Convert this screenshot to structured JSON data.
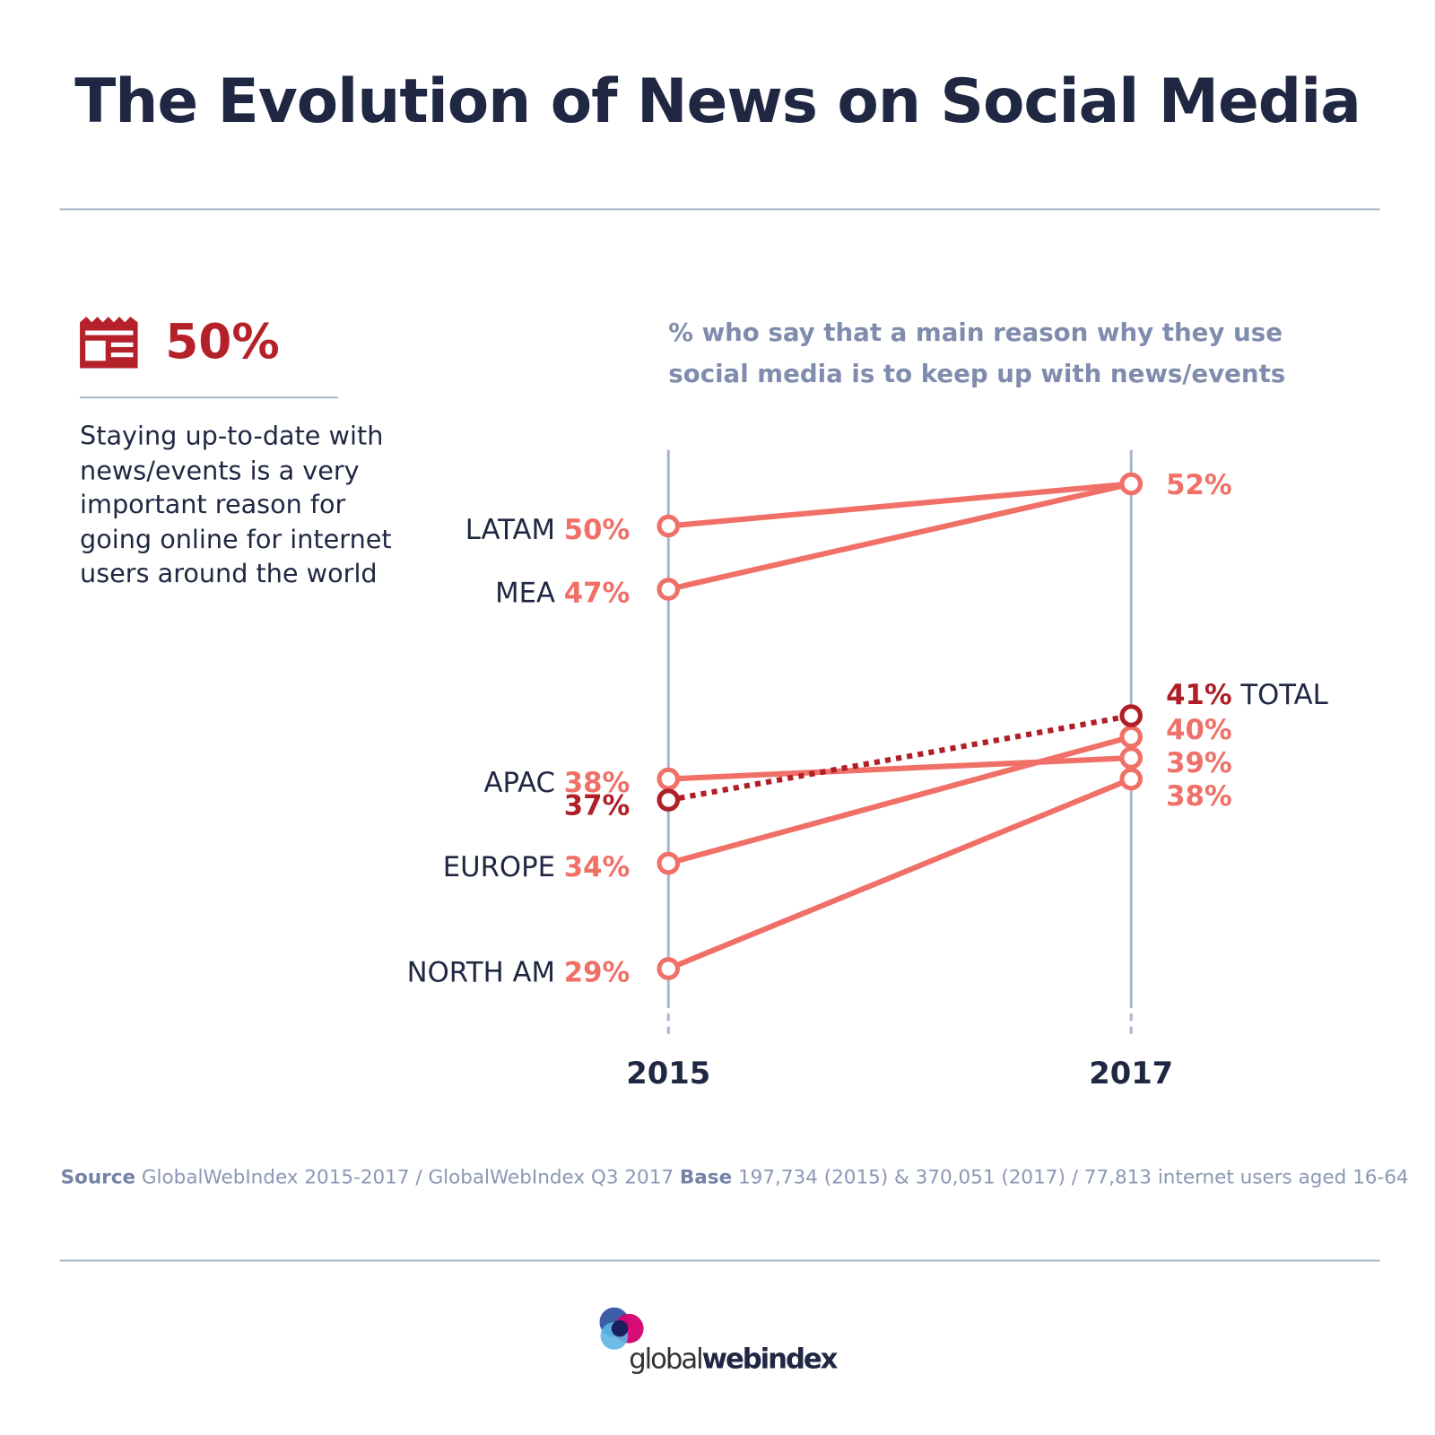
{
  "title": "The Evolution of News on Social Media",
  "side": {
    "icon": "newspaper-icon",
    "stat": "50%",
    "description": "Staying up-to-date with news/events is a very important reason for going online for internet users around the world"
  },
  "chart_data": {
    "type": "slope",
    "title": "% who say that a main reason why they use social media is to keep up with news/events",
    "categories": [
      "2015",
      "2017"
    ],
    "series": [
      {
        "name": "LATAM",
        "values": [
          50,
          52
        ],
        "label_2015": "50%",
        "label_2017": "52%",
        "style": "solid"
      },
      {
        "name": "MEA",
        "values": [
          47,
          52
        ],
        "label_2015": "47%",
        "label_2017": "",
        "style": "solid"
      },
      {
        "name": "APAC",
        "values": [
          38,
          39
        ],
        "label_2015": "38%",
        "label_2017": "39%",
        "style": "solid"
      },
      {
        "name": "EUROPE",
        "values": [
          34,
          40
        ],
        "label_2015": "34%",
        "label_2017": "40%",
        "style": "solid"
      },
      {
        "name": "NORTH AM",
        "values": [
          29,
          38
        ],
        "label_2015": "29%",
        "label_2017": "38%",
        "style": "solid"
      },
      {
        "name": "TOTAL",
        "values": [
          37,
          41
        ],
        "label_2015": "37%",
        "label_2017": "41%",
        "style": "dotted"
      }
    ],
    "colors": {
      "regions": "#f07068",
      "total": "#b01e28",
      "axis": "#a9b6cf"
    }
  },
  "footer": {
    "source_label": "Source",
    "source_text": " GlobalWebIndex 2015-2017 / GlobalWebIndex Q3 2017 ",
    "base_label": "Base",
    "base_text": " 197,734 (2015) & 370,051 (2017) / 77,813 internet users aged 16-64"
  },
  "logo": {
    "text_light": "global",
    "text_bold": "webindex"
  }
}
